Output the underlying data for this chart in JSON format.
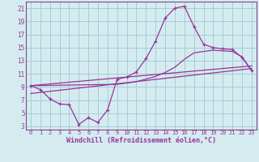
{
  "xlabel": "Windchill (Refroidissement éolien,°C)",
  "bg_color": "#d4ecf0",
  "grid_color": "#a8ccd4",
  "line_color": "#993399",
  "spine_color": "#884488",
  "xlim": [
    -0.5,
    23.5
  ],
  "ylim": [
    2.5,
    22
  ],
  "yticks": [
    3,
    5,
    7,
    9,
    11,
    13,
    15,
    17,
    19,
    21
  ],
  "xticks": [
    0,
    1,
    2,
    3,
    4,
    5,
    6,
    7,
    8,
    9,
    10,
    11,
    12,
    13,
    14,
    15,
    16,
    17,
    18,
    19,
    20,
    21,
    22,
    23
  ],
  "curve1_x": [
    0,
    1,
    2,
    3,
    4,
    5,
    6,
    7,
    8,
    9,
    10,
    11,
    12,
    13,
    14,
    15,
    16,
    17,
    18,
    19,
    20,
    21,
    22,
    23
  ],
  "curve1_y": [
    9.2,
    8.6,
    7.2,
    6.4,
    6.3,
    3.3,
    4.3,
    3.6,
    5.5,
    10.2,
    10.5,
    11.3,
    13.3,
    16.0,
    19.5,
    21.0,
    21.3,
    18.2,
    15.5,
    15.0,
    14.8,
    14.7,
    13.5,
    11.5
  ],
  "curve2_x": [
    0,
    9,
    10,
    11,
    12,
    13,
    14,
    15,
    16,
    17,
    18,
    19,
    20,
    21,
    22,
    23
  ],
  "curve2_y": [
    9.2,
    9.4,
    9.6,
    9.8,
    10.2,
    10.6,
    11.2,
    12.0,
    13.2,
    14.2,
    14.4,
    14.6,
    14.5,
    14.4,
    13.6,
    11.5
  ],
  "curve3_x": [
    0,
    23
  ],
  "curve3_y": [
    8.0,
    11.8
  ],
  "curve4_x": [
    0,
    23
  ],
  "curve4_y": [
    9.2,
    12.2
  ]
}
